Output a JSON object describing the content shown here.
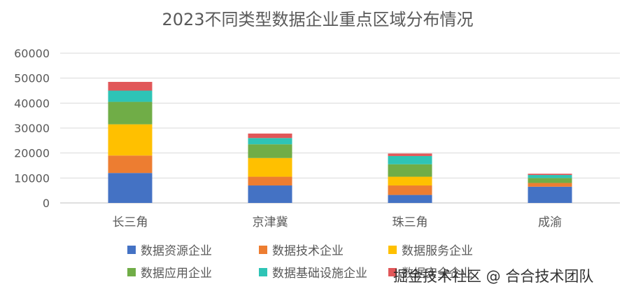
{
  "chart_data": {
    "type": "bar",
    "stacked": true,
    "title": "2023不同类型数据企业重点区域分布情况",
    "categories": [
      "长三角",
      "京津冀",
      "珠三角",
      "成渝"
    ],
    "ylim": [
      0,
      60000
    ],
    "yticks": [
      "0",
      "10000",
      "20000",
      "30000",
      "40000",
      "50000",
      "60000"
    ],
    "grid": true,
    "legend_position": "bottom",
    "series": [
      {
        "name": "数据资源企业",
        "color": "#4472C4",
        "values": [
          12000,
          7000,
          3200,
          6500
        ]
      },
      {
        "name": "数据技术企业",
        "color": "#ED7D31",
        "values": [
          7000,
          3500,
          3800,
          1500
        ]
      },
      {
        "name": "数据服务企业",
        "color": "#FFC000",
        "values": [
          12500,
          7500,
          3500,
          0
        ]
      },
      {
        "name": "数据应用企业",
        "color": "#70AD47",
        "values": [
          9000,
          5500,
          5000,
          2000
        ]
      },
      {
        "name": "数据基础设施企业",
        "color": "#2EC4B6",
        "values": [
          4500,
          2500,
          3300,
          1200
        ]
      },
      {
        "name": "数据安全企业",
        "color": "#E15759",
        "values": [
          3500,
          1800,
          1000,
          500
        ]
      }
    ]
  },
  "watermark": "掘金技术社区 @ 合合技术团队"
}
